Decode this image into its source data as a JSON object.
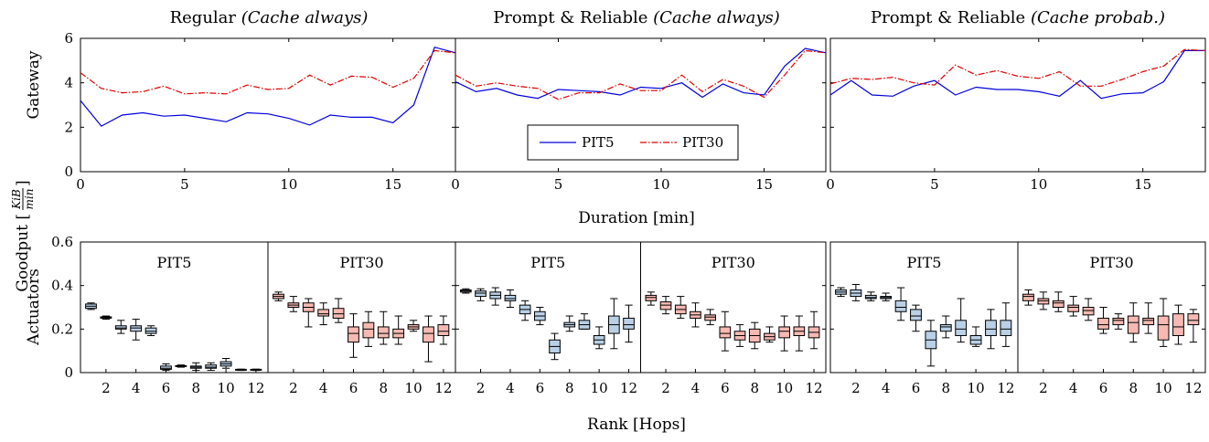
{
  "figure": {
    "xlabel_top": "Duration [min]",
    "xlabel_bottom": "Rank [Hops]",
    "ylabel_shared": "Goodput [KiB/min]",
    "ylabel_shared_main": "Goodput [",
    "ylabel_shared_num": "KiB",
    "ylabel_shared_den": "min",
    "ylabel_shared_close": "]",
    "row_labels": [
      "Gateway",
      "Actuators"
    ],
    "colors": {
      "pit5": "#0000dd",
      "pit30": "#dd0000",
      "box_blue": "#b9d0e6",
      "box_red": "#f7b9b2"
    }
  },
  "chart_data": [
    {
      "type": "line",
      "title_main": "Regular",
      "title_italic": "(Cache always)",
      "xlabel": "",
      "ylabel": "Gateway",
      "xlim": [
        0,
        18
      ],
      "ylim": [
        0,
        6
      ],
      "x_ticks": [
        0,
        5,
        10,
        15
      ],
      "y_ticks": [
        0,
        2,
        4,
        6
      ],
      "x": [
        0,
        1,
        2,
        3,
        4,
        5,
        6,
        7,
        8,
        9,
        10,
        11,
        12,
        13,
        14,
        15,
        16,
        17,
        18
      ],
      "series": [
        {
          "name": "PIT5",
          "values": [
            3.2,
            2.05,
            2.55,
            2.65,
            2.5,
            2.55,
            2.4,
            2.25,
            2.65,
            2.6,
            2.4,
            2.1,
            2.55,
            2.45,
            2.45,
            2.2,
            3.0,
            5.6,
            5.35
          ]
        },
        {
          "name": "PIT30",
          "values": [
            4.45,
            3.75,
            3.55,
            3.6,
            3.85,
            3.5,
            3.55,
            3.5,
            3.9,
            3.7,
            3.75,
            4.35,
            3.9,
            4.3,
            4.25,
            3.8,
            4.2,
            5.45,
            5.35
          ]
        }
      ]
    },
    {
      "type": "line",
      "title_main": "Prompt & Reliable",
      "title_italic": "(Cache always)",
      "xlabel": "",
      "ylabel": "",
      "xlim": [
        0,
        18
      ],
      "ylim": [
        0,
        6
      ],
      "x_ticks": [
        0,
        5,
        10,
        15
      ],
      "y_ticks": [
        0,
        2,
        4,
        6
      ],
      "legend_position": "bottom-center",
      "x": [
        0,
        1,
        2,
        3,
        4,
        5,
        6,
        7,
        8,
        9,
        10,
        11,
        12,
        13,
        14,
        15,
        16,
        17,
        18
      ],
      "series": [
        {
          "name": "PIT5",
          "values": [
            4.05,
            3.6,
            3.75,
            3.45,
            3.3,
            3.7,
            3.65,
            3.6,
            3.45,
            3.8,
            3.75,
            4.0,
            3.35,
            3.95,
            3.55,
            3.45,
            4.75,
            5.55,
            5.35
          ]
        },
        {
          "name": "PIT30",
          "values": [
            4.35,
            3.85,
            4.0,
            3.85,
            3.75,
            3.25,
            3.55,
            3.55,
            3.95,
            3.65,
            3.65,
            4.35,
            3.6,
            4.15,
            3.85,
            3.35,
            4.35,
            5.45,
            5.35
          ]
        }
      ]
    },
    {
      "type": "line",
      "title_main": "Prompt & Reliable",
      "title_italic": "(Cache probab.)",
      "xlabel": "",
      "ylabel": "",
      "xlim": [
        0,
        18
      ],
      "ylim": [
        0,
        6
      ],
      "x_ticks": [
        0,
        5,
        10,
        15
      ],
      "y_ticks": [
        0,
        2,
        4,
        6
      ],
      "x": [
        0,
        1,
        2,
        3,
        4,
        5,
        6,
        7,
        8,
        9,
        10,
        11,
        12,
        13,
        14,
        15,
        16,
        17,
        18
      ],
      "series": [
        {
          "name": "PIT5",
          "values": [
            3.45,
            4.1,
            3.45,
            3.4,
            3.85,
            4.1,
            3.45,
            3.8,
            3.7,
            3.7,
            3.6,
            3.4,
            4.1,
            3.3,
            3.5,
            3.55,
            4.05,
            5.45,
            5.45
          ]
        },
        {
          "name": "PIT30",
          "values": [
            3.95,
            4.2,
            4.15,
            4.25,
            4.0,
            3.9,
            4.8,
            4.35,
            4.55,
            4.3,
            4.2,
            4.5,
            3.85,
            3.85,
            4.15,
            4.5,
            4.75,
            5.5,
            5.45
          ]
        }
      ]
    },
    {
      "type": "box",
      "ylabel": "Actuators",
      "ylim": [
        0,
        0.6
      ],
      "y_ticks": [
        0,
        0.2,
        0.4,
        0.6
      ],
      "x_ticks": [
        2,
        4,
        6,
        8,
        10,
        12
      ],
      "facets": [
        {
          "name": "PIT5",
          "color": "blue",
          "boxes": [
            [
              0.29,
              0.295,
              0.305,
              0.315,
              0.32
            ],
            [
              0.245,
              0.25,
              0.252,
              0.256,
              0.26
            ],
            [
              0.18,
              0.2,
              0.205,
              0.215,
              0.24
            ],
            [
              0.15,
              0.19,
              0.205,
              0.215,
              0.245
            ],
            [
              0.17,
              0.18,
              0.19,
              0.205,
              0.215
            ],
            [
              0.01,
              0.015,
              0.02,
              0.03,
              0.04
            ],
            [
              0.025,
              0.03,
              0.031,
              0.032,
              0.035
            ],
            [
              0.01,
              0.02,
              0.025,
              0.03,
              0.045
            ],
            [
              0.01,
              0.02,
              0.025,
              0.035,
              0.045
            ],
            [
              0.02,
              0.03,
              0.04,
              0.05,
              0.065
            ],
            [
              0.01,
              0.012,
              0.013,
              0.015,
              0.016
            ],
            [
              0.01,
              0.012,
              0.013,
              0.015,
              0.016
            ]
          ]
        },
        {
          "name": "PIT30",
          "color": "red",
          "boxes": [
            [
              0.33,
              0.34,
              0.35,
              0.36,
              0.37
            ],
            [
              0.28,
              0.3,
              0.31,
              0.32,
              0.35
            ],
            [
              0.21,
              0.28,
              0.3,
              0.32,
              0.34
            ],
            [
              0.22,
              0.26,
              0.27,
              0.29,
              0.32
            ],
            [
              0.23,
              0.25,
              0.27,
              0.295,
              0.34
            ],
            [
              0.07,
              0.14,
              0.18,
              0.21,
              0.27
            ],
            [
              0.12,
              0.16,
              0.2,
              0.23,
              0.28
            ],
            [
              0.13,
              0.16,
              0.18,
              0.21,
              0.28
            ],
            [
              0.13,
              0.16,
              0.18,
              0.2,
              0.26
            ],
            [
              0.19,
              0.2,
              0.21,
              0.22,
              0.24
            ],
            [
              0.05,
              0.14,
              0.18,
              0.21,
              0.26
            ],
            [
              0.13,
              0.17,
              0.19,
              0.22,
              0.26
            ]
          ]
        }
      ]
    },
    {
      "type": "box",
      "ylabel": "",
      "ylim": [
        0,
        0.6
      ],
      "y_ticks": [
        0,
        0.2,
        0.4,
        0.6
      ],
      "x_ticks": [
        2,
        4,
        6,
        8,
        10,
        12
      ],
      "facets": [
        {
          "name": "PIT5",
          "color": "blue",
          "boxes": [
            [
              0.365,
              0.37,
              0.375,
              0.38,
              0.385
            ],
            [
              0.33,
              0.35,
              0.365,
              0.375,
              0.385
            ],
            [
              0.31,
              0.34,
              0.355,
              0.37,
              0.39
            ],
            [
              0.3,
              0.33,
              0.34,
              0.355,
              0.38
            ],
            [
              0.24,
              0.27,
              0.29,
              0.31,
              0.33
            ],
            [
              0.22,
              0.24,
              0.26,
              0.28,
              0.3
            ],
            [
              0.06,
              0.09,
              0.12,
              0.15,
              0.18
            ],
            [
              0.19,
              0.21,
              0.22,
              0.23,
              0.26
            ],
            [
              0.2,
              0.2,
              0.22,
              0.24,
              0.27
            ],
            [
              0.11,
              0.13,
              0.15,
              0.17,
              0.21
            ],
            [
              0.11,
              0.18,
              0.22,
              0.26,
              0.34
            ],
            [
              0.14,
              0.2,
              0.22,
              0.25,
              0.31
            ]
          ]
        },
        {
          "name": "PIT30",
          "color": "red",
          "boxes": [
            [
              0.31,
              0.33,
              0.345,
              0.355,
              0.37
            ],
            [
              0.27,
              0.29,
              0.31,
              0.325,
              0.35
            ],
            [
              0.25,
              0.27,
              0.29,
              0.31,
              0.35
            ],
            [
              0.21,
              0.25,
              0.265,
              0.28,
              0.32
            ],
            [
              0.22,
              0.24,
              0.255,
              0.265,
              0.29
            ],
            [
              0.1,
              0.16,
              0.18,
              0.21,
              0.28
            ],
            [
              0.12,
              0.15,
              0.17,
              0.19,
              0.22
            ],
            [
              0.11,
              0.14,
              0.17,
              0.2,
              0.23
            ],
            [
              0.14,
              0.15,
              0.165,
              0.18,
              0.21
            ],
            [
              0.1,
              0.16,
              0.19,
              0.21,
              0.26
            ],
            [
              0.1,
              0.17,
              0.19,
              0.21,
              0.26
            ],
            [
              0.11,
              0.16,
              0.185,
              0.21,
              0.28
            ]
          ]
        }
      ]
    },
    {
      "type": "box",
      "ylabel": "",
      "ylim": [
        0,
        0.6
      ],
      "y_ticks": [
        0,
        0.2,
        0.4,
        0.6
      ],
      "x_ticks": [
        2,
        4,
        6,
        8,
        10,
        12
      ],
      "facets": [
        {
          "name": "PIT5",
          "color": "blue",
          "boxes": [
            [
              0.35,
              0.36,
              0.37,
              0.38,
              0.39
            ],
            [
              0.33,
              0.35,
              0.365,
              0.38,
              0.405
            ],
            [
              0.33,
              0.34,
              0.345,
              0.355,
              0.37
            ],
            [
              0.33,
              0.34,
              0.345,
              0.35,
              0.365
            ],
            [
              0.24,
              0.28,
              0.3,
              0.33,
              0.39
            ],
            [
              0.19,
              0.24,
              0.26,
              0.29,
              0.31
            ],
            [
              0.03,
              0.11,
              0.15,
              0.19,
              0.24
            ],
            [
              0.16,
              0.19,
              0.21,
              0.22,
              0.26
            ],
            [
              0.14,
              0.17,
              0.2,
              0.24,
              0.34
            ],
            [
              0.12,
              0.13,
              0.15,
              0.17,
              0.21
            ],
            [
              0.11,
              0.17,
              0.2,
              0.24,
              0.29
            ],
            [
              0.12,
              0.17,
              0.2,
              0.24,
              0.32
            ]
          ]
        },
        {
          "name": "PIT30",
          "color": "red",
          "boxes": [
            [
              0.31,
              0.33,
              0.35,
              0.36,
              0.38
            ],
            [
              0.29,
              0.315,
              0.33,
              0.34,
              0.37
            ],
            [
              0.28,
              0.3,
              0.32,
              0.33,
              0.37
            ],
            [
              0.26,
              0.28,
              0.3,
              0.31,
              0.35
            ],
            [
              0.24,
              0.265,
              0.285,
              0.3,
              0.34
            ],
            [
              0.18,
              0.2,
              0.22,
              0.25,
              0.3
            ],
            [
              0.2,
              0.22,
              0.24,
              0.25,
              0.27
            ],
            [
              0.14,
              0.18,
              0.23,
              0.26,
              0.32
            ],
            [
              0.18,
              0.22,
              0.24,
              0.25,
              0.32
            ],
            [
              0.12,
              0.15,
              0.22,
              0.26,
              0.34
            ],
            [
              0.13,
              0.17,
              0.21,
              0.27,
              0.31
            ],
            [
              0.14,
              0.22,
              0.24,
              0.27,
              0.29
            ]
          ]
        }
      ]
    }
  ]
}
